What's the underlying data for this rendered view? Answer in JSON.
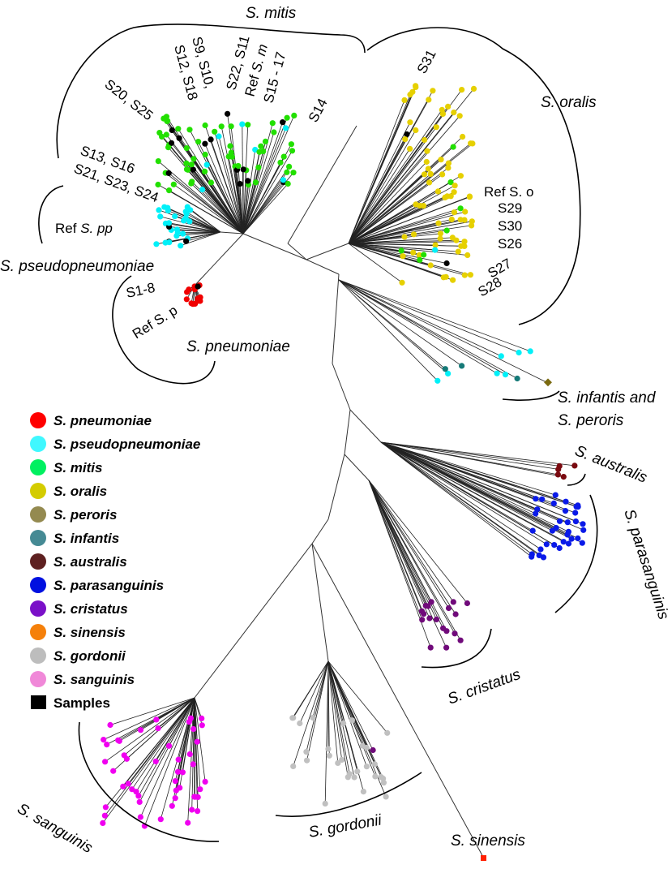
{
  "clades": {
    "mitis": "S. mitis",
    "oralis": "S. oralis",
    "pseudopneumoniae": "S. pseudopneumoniae",
    "pneumoniae": "S. pneumoniae",
    "infantis_1": "S. infantis and",
    "infantis_2": "S. peroris",
    "australis": "S. australis",
    "parasanguinis": "S. parasanguinis",
    "cristatus": "S. cristatus",
    "sinensis": "S. sinensis",
    "gordonii": "S. gordonii",
    "sanguinis": "S. sanguinis"
  },
  "sample_labels": {
    "s20_s25": "S20, S25",
    "s12_s18": "S12, S18",
    "s9_s10": "S9, S10,",
    "s22_s11": "S22, S11",
    "ref_sm_prefix": "Ref ",
    "ref_sm_name": "S. m",
    "s15_17": "S15 - 17",
    "s14": "S14",
    "s13_s16": "S13, S16",
    "s21_s23_s24": "S21, S23, S24",
    "ref_spp_prefix": "Ref ",
    "ref_spp_name": "S. pp",
    "s1_8": "S1-8",
    "ref_sp": "Ref S. p",
    "s31": "S31",
    "ref_so": "Ref S. o",
    "s29": "S29",
    "s30": "S30",
    "s26": "S26",
    "s27": "S27",
    "s28": "S28"
  },
  "legend": [
    {
      "label": "S. pneumoniae",
      "color": "#ff0000"
    },
    {
      "label": "S. pseudopneumoniae",
      "color": "#40f8ff"
    },
    {
      "label": "S. mitis",
      "color": "#00f060"
    },
    {
      "label": "S. oralis",
      "color": "#d4cc00"
    },
    {
      "label": "S. peroris",
      "color": "#948a50"
    },
    {
      "label": "S. infantis",
      "color": "#458a94"
    },
    {
      "label": "S. australis",
      "color": "#5e2020"
    },
    {
      "label": "S. parasanguinis",
      "color": "#0010e0"
    },
    {
      "label": "S. cristatus",
      "color": "#7a10c8"
    },
    {
      "label": "S. sinensis",
      "color": "#f5800a"
    },
    {
      "label": "S. gordonii",
      "color": "#bdbdbd"
    },
    {
      "label": "S. sanguinis",
      "color": "#f088d8"
    },
    {
      "label": "Samples",
      "color": "#000000",
      "shape": "square"
    }
  ],
  "leaf_colors": {
    "mitis": "#22e000",
    "pseudopneumoniae": "#00f0f8",
    "pneumoniae": "#f00000",
    "oralis": "#e6d000",
    "infantis": "#157a78",
    "peroris": "#7a6a10",
    "australis": "#7a0a10",
    "parasanguinis": "#0a1ae8",
    "cristatus": "#700a7a",
    "gordonii": "#c0c0c0",
    "sanguinis": "#f000f0",
    "sinensis": "#ff2000",
    "sample": "#000000"
  }
}
